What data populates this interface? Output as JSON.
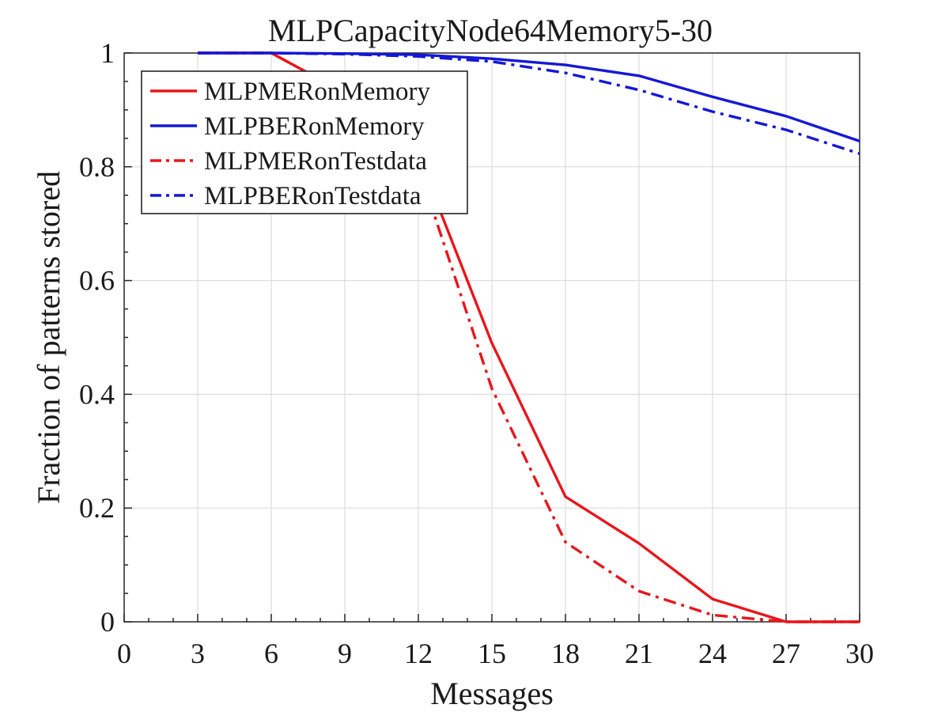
{
  "chart_data": {
    "type": "line",
    "title": "MLPCapacityNode64Memory5-30",
    "xlabel": "Messages",
    "ylabel": "Fraction of patterns stored",
    "xlim": [
      0,
      30
    ],
    "ylim": [
      0,
      1
    ],
    "xticks": [
      0,
      3,
      6,
      9,
      12,
      15,
      18,
      21,
      24,
      27,
      30
    ],
    "yticks": [
      0,
      0.2,
      0.4,
      0.6,
      0.8,
      1
    ],
    "xtick_labels": [
      "0",
      "3",
      "6",
      "9",
      "12",
      "15",
      "18",
      "21",
      "24",
      "27",
      "30"
    ],
    "ytick_labels": [
      "0",
      "0.2",
      "0.4",
      "0.6",
      "0.8",
      "1"
    ],
    "grid": true,
    "legend_position": "top-left",
    "x": [
      3,
      6,
      9,
      12,
      15,
      18,
      21,
      24,
      27,
      30
    ],
    "series": [
      {
        "name": "MLPMERonMemory",
        "color": "#e8161b",
        "style": "solid",
        "values": [
          1.0,
          1.0,
          0.93,
          0.82,
          0.49,
          0.22,
          0.138,
          0.04,
          0.0,
          0.0
        ]
      },
      {
        "name": "MLPBERonMemory",
        "color": "#1418d6",
        "style": "solid",
        "values": [
          1.0,
          1.0,
          0.999,
          0.997,
          0.99,
          0.979,
          0.96,
          0.923,
          0.889,
          0.845
        ]
      },
      {
        "name": "MLPMERonTestdata",
        "color": "#e8161b",
        "style": "dashdot",
        "values": [
          1.0,
          1.0,
          0.93,
          0.8,
          0.41,
          0.14,
          0.054,
          0.012,
          0.0,
          0.0
        ]
      },
      {
        "name": "MLPBERonTestdata",
        "color": "#1418d6",
        "style": "dashdot",
        "values": [
          1.0,
          1.0,
          0.998,
          0.994,
          0.985,
          0.965,
          0.935,
          0.897,
          0.865,
          0.823
        ]
      }
    ]
  }
}
